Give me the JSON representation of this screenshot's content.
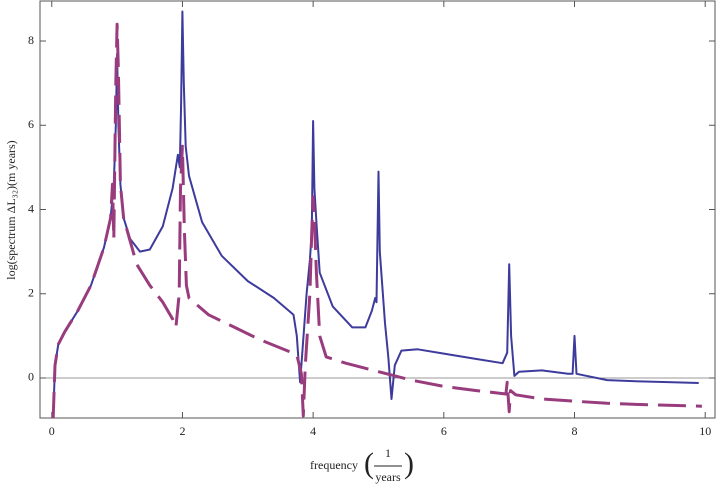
{
  "chart_data": {
    "type": "line",
    "xlabel": {
      "text": "frequency",
      "numerator": "1",
      "denominator": "years"
    },
    "ylabel": "log(spectrum ΔL₃₂)(m years)",
    "xlim": [
      -0.18,
      10.15
    ],
    "ylim": [
      -0.95,
      8.95
    ],
    "xticks": [
      0,
      2,
      4,
      6,
      8,
      10
    ],
    "yticks": [
      0,
      2,
      4,
      6,
      8
    ],
    "zero_line": true,
    "series": [
      {
        "color": "#3d3b9c",
        "dashed": false,
        "x": [
          0.02,
          0.05,
          0.1,
          0.2,
          0.4,
          0.6,
          0.8,
          0.9,
          0.95,
          0.98,
          1.0,
          1.02,
          1.05,
          1.1,
          1.2,
          1.35,
          1.5,
          1.7,
          1.85,
          1.93,
          1.96,
          1.98,
          2.0,
          2.02,
          2.05,
          2.1,
          2.3,
          2.6,
          3.0,
          3.4,
          3.7,
          3.75,
          3.8,
          3.83,
          3.9,
          3.95,
          3.98,
          4.0,
          4.02,
          4.05,
          4.1,
          4.3,
          4.6,
          4.8,
          4.9,
          4.95,
          4.97,
          5.0,
          5.02,
          5.1,
          5.15,
          5.2,
          5.25,
          5.35,
          5.6,
          6.0,
          6.5,
          6.9,
          6.97,
          7.0,
          7.03,
          7.08,
          7.15,
          7.5,
          7.9,
          7.97,
          8.0,
          8.03,
          8.5,
          9.0,
          9.5,
          9.9
        ],
        "values": [
          -1,
          0.3,
          0.8,
          1.1,
          1.6,
          2.2,
          3.1,
          3.8,
          4.6,
          6.0,
          7.7,
          6.0,
          4.6,
          3.8,
          3.3,
          3.0,
          3.05,
          3.6,
          4.5,
          5.3,
          5.0,
          6.5,
          8.7,
          7.0,
          5.5,
          4.8,
          3.7,
          2.9,
          2.3,
          1.9,
          1.5,
          1.0,
          -0.1,
          0.5,
          2.0,
          2.8,
          3.5,
          6.1,
          4.5,
          3.7,
          2.5,
          1.7,
          1.2,
          1.2,
          1.6,
          1.9,
          1.8,
          4.9,
          3.0,
          1.3,
          0.5,
          -0.5,
          0.3,
          0.65,
          0.68,
          0.58,
          0.45,
          0.35,
          0.6,
          2.7,
          1.0,
          0.05,
          0.15,
          0.18,
          0.1,
          0.1,
          1.0,
          0.1,
          -0.05,
          -0.08,
          -0.1,
          -0.12
        ]
      },
      {
        "color": "#993c7e",
        "dashed": true,
        "x": [
          0.02,
          0.05,
          0.1,
          0.2,
          0.4,
          0.6,
          0.8,
          0.9,
          0.93,
          0.95,
          0.98,
          1.0,
          1.02,
          1.05,
          1.1,
          1.3,
          1.5,
          1.7,
          1.85,
          1.9,
          1.95,
          1.97,
          2.0,
          2.03,
          2.06,
          2.1,
          2.4,
          2.8,
          3.2,
          3.6,
          3.75,
          3.82,
          3.85,
          3.88,
          3.95,
          3.98,
          4.0,
          4.02,
          4.05,
          4.1,
          4.2,
          4.5,
          5.0,
          5.5,
          6.0,
          6.5,
          6.95,
          6.97,
          7.0,
          7.02,
          7.1,
          7.5,
          8.0,
          8.5,
          9.0,
          9.5,
          9.95
        ],
        "values": [
          -1,
          0.3,
          0.8,
          1.1,
          1.6,
          2.2,
          3.1,
          3.8,
          4.6,
          3.3,
          7.0,
          8.4,
          7.3,
          4.6,
          3.8,
          2.7,
          2.2,
          1.8,
          1.4,
          1.2,
          2.0,
          4.5,
          5.5,
          3.5,
          2.2,
          1.9,
          1.5,
          1.2,
          0.9,
          0.65,
          0.55,
          0.1,
          -0.9,
          0.3,
          2.0,
          3.5,
          4.3,
          3.8,
          2.5,
          1.0,
          0.5,
          0.35,
          0.15,
          -0.05,
          -0.2,
          -0.3,
          -0.38,
          -0.1,
          -0.8,
          -0.3,
          -0.4,
          -0.5,
          -0.55,
          -0.6,
          -0.63,
          -0.65,
          -0.67
        ]
      }
    ]
  }
}
